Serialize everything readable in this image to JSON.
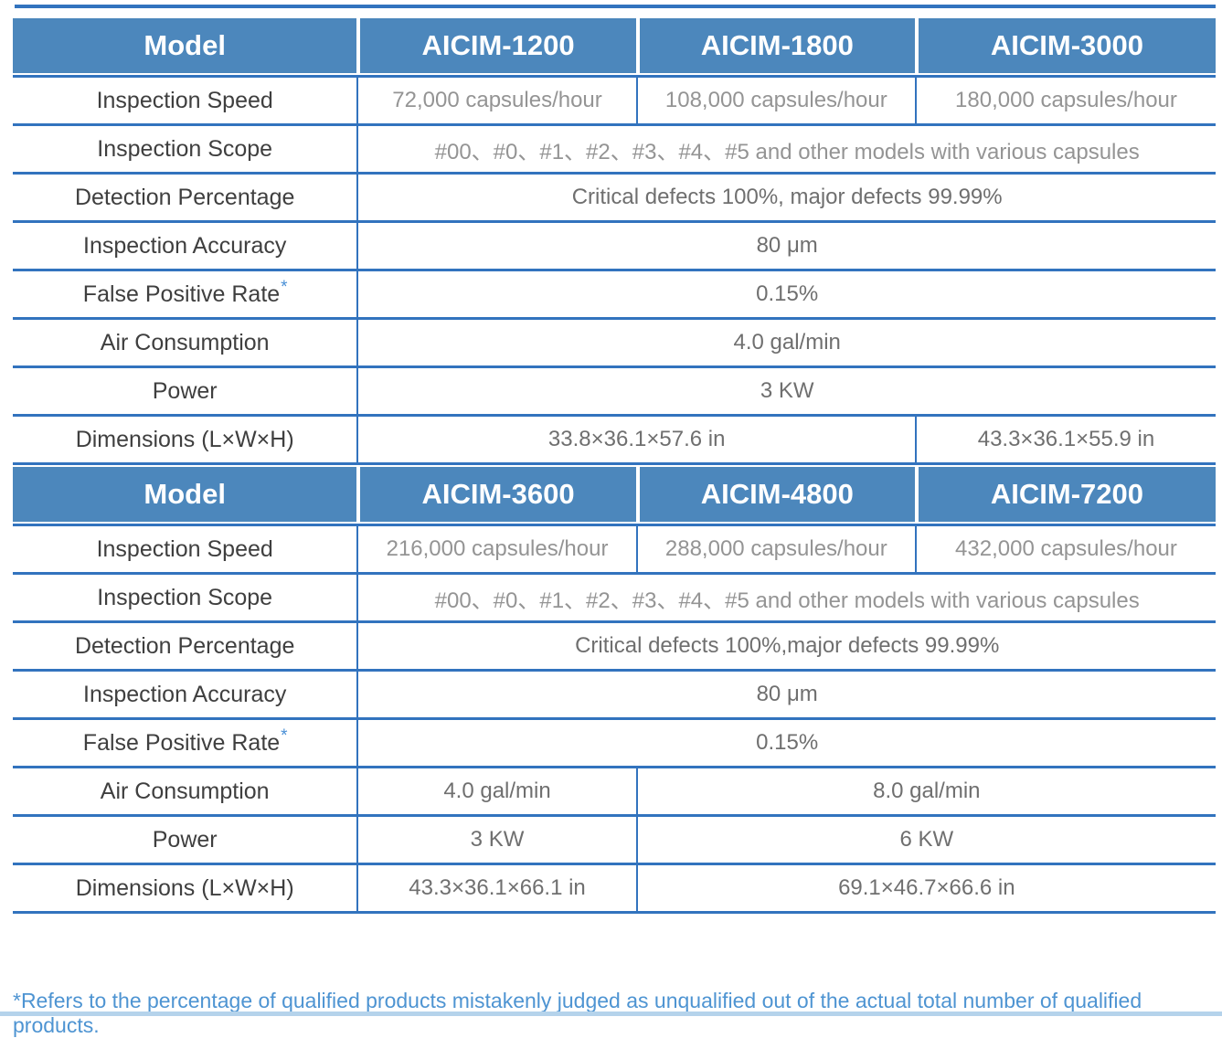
{
  "page": {
    "footnote": "*Refers to the percentage of qualified products mistakenly judged as unqualified out of the actual total number of qualified products.",
    "header_bg_color": "#4c87bc",
    "rule_color": "#3273be",
    "footnote_color": "#4e94d2",
    "asterisk_color": "#4a90d6"
  },
  "tables": [
    {
      "header": {
        "model_label": "Model",
        "models": [
          "AICIM-1200",
          "AICIM-1800",
          "AICIM-3000"
        ]
      },
      "rows": {
        "inspection_speed": {
          "label": "Inspection Speed",
          "values": [
            "72,000 capsules/hour",
            "108,000 capsules/hour",
            "180,000 capsules/hour"
          ]
        },
        "inspection_scope": {
          "label": "Inspection Scope",
          "value": "#00、#0、#1、#2、#3、#4、#5 and other models with various capsules"
        },
        "detection_percentage": {
          "label": "Detection Percentage",
          "value": "Critical defects 100%, major defects 99.99%"
        },
        "inspection_accuracy": {
          "label": "Inspection Accuracy",
          "value": "80 μm"
        },
        "false_positive_rate": {
          "label": "False Positive Rate",
          "asterisk": "*",
          "value": "0.15%"
        },
        "air_consumption": {
          "label": "Air Consumption",
          "value": "4.0 gal/min"
        },
        "power": {
          "label": "Power",
          "value": "3 KW"
        },
        "dimensions": {
          "label": "Dimensions (L×W×H)",
          "values": [
            "33.8×36.1×57.6 in",
            "43.3×36.1×55.9 in"
          ]
        }
      }
    },
    {
      "header": {
        "model_label": "Model",
        "models": [
          "AICIM-3600",
          "AICIM-4800",
          "AICIM-7200"
        ]
      },
      "rows": {
        "inspection_speed": {
          "label": "Inspection Speed",
          "values": [
            "216,000 capsules/hour",
            "288,000 capsules/hour",
            "432,000 capsules/hour"
          ]
        },
        "inspection_scope": {
          "label": "Inspection Scope",
          "value": "#00、#0、#1、#2、#3、#4、#5 and other models with various capsules"
        },
        "detection_percentage": {
          "label": "Detection Percentage",
          "value": "Critical defects 100%,major defects 99.99%"
        },
        "inspection_accuracy": {
          "label": "Inspection Accuracy",
          "value": "80 μm"
        },
        "false_positive_rate": {
          "label": "False Positive Rate",
          "asterisk": "*",
          "value": "0.15%"
        },
        "air_consumption": {
          "label": "Air Consumption",
          "values": [
            "4.0 gal/min",
            "8.0 gal/min"
          ]
        },
        "power": {
          "label": "Power",
          "values": [
            "3 KW",
            "6 KW"
          ]
        },
        "dimensions": {
          "label": "Dimensions (L×W×H)",
          "values": [
            "43.3×36.1×66.1 in",
            "69.1×46.7×66.6 in"
          ]
        }
      }
    }
  ]
}
